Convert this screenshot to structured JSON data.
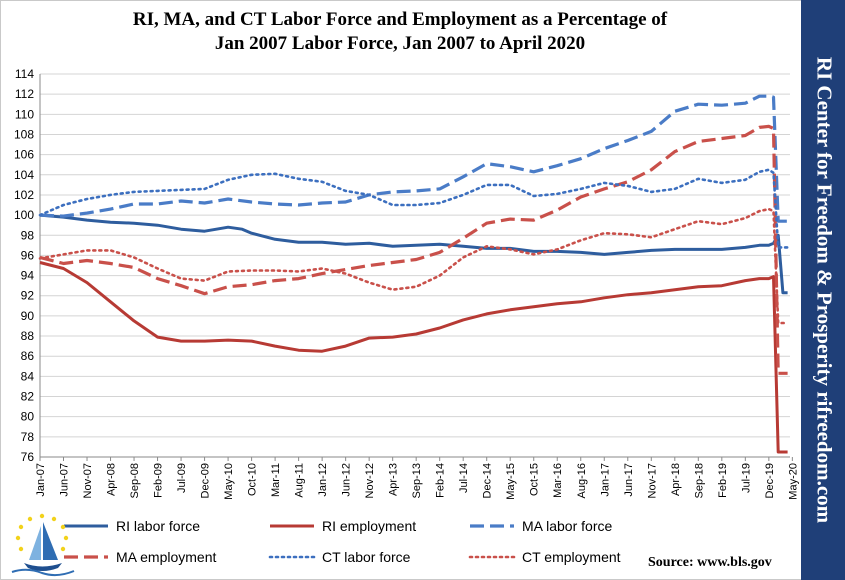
{
  "chart_data": {
    "type": "line",
    "title_line1": "RI, MA, and CT Labor Force and Employment as a Percentage of",
    "title_line2": "Jan 2007 Labor Force, Jan 2007 to April 2020",
    "ylim": [
      76,
      114
    ],
    "yticks": [
      76,
      78,
      80,
      82,
      84,
      86,
      88,
      90,
      92,
      94,
      96,
      98,
      100,
      102,
      104,
      106,
      108,
      110,
      112,
      114
    ],
    "xlim": [
      0,
      159
    ],
    "xticks": [
      {
        "label": "Jan-07",
        "i": 0
      },
      {
        "label": "Jun-07",
        "i": 5
      },
      {
        "label": "Nov-07",
        "i": 10
      },
      {
        "label": "Apr-08",
        "i": 15
      },
      {
        "label": "Sep-08",
        "i": 20
      },
      {
        "label": "Feb-09",
        "i": 25
      },
      {
        "label": "Jul-09",
        "i": 30
      },
      {
        "label": "Dec-09",
        "i": 35
      },
      {
        "label": "May-10",
        "i": 40
      },
      {
        "label": "Oct-10",
        "i": 45
      },
      {
        "label": "Mar-11",
        "i": 50
      },
      {
        "label": "Aug-11",
        "i": 55
      },
      {
        "label": "Jan-12",
        "i": 60
      },
      {
        "label": "Jun-12",
        "i": 65
      },
      {
        "label": "Nov-12",
        "i": 70
      },
      {
        "label": "Apr-13",
        "i": 75
      },
      {
        "label": "Sep-13",
        "i": 80
      },
      {
        "label": "Feb-14",
        "i": 85
      },
      {
        "label": "Jul-14",
        "i": 90
      },
      {
        "label": "Dec-14",
        "i": 95
      },
      {
        "label": "May-15",
        "i": 100
      },
      {
        "label": "Oct-15",
        "i": 105
      },
      {
        "label": "Mar-16",
        "i": 110
      },
      {
        "label": "Aug-16",
        "i": 115
      },
      {
        "label": "Jan-17",
        "i": 120
      },
      {
        "label": "Jun-17",
        "i": 125
      },
      {
        "label": "Nov-17",
        "i": 130
      },
      {
        "label": "Apr-18",
        "i": 135
      },
      {
        "label": "Sep-18",
        "i": 140
      },
      {
        "label": "Feb-19",
        "i": 145
      },
      {
        "label": "Jul-19",
        "i": 150
      },
      {
        "label": "Dec-19",
        "i": 155
      },
      {
        "label": "May-20",
        "i": 160
      }
    ],
    "series": [
      {
        "name": "RI labor force",
        "color": "#2e5d9e",
        "style": "solid",
        "points": [
          [
            0,
            100
          ],
          [
            5,
            99.8
          ],
          [
            10,
            99.5
          ],
          [
            15,
            99.3
          ],
          [
            20,
            99.2
          ],
          [
            25,
            99.0
          ],
          [
            30,
            98.6
          ],
          [
            35,
            98.4
          ],
          [
            40,
            98.8
          ],
          [
            43,
            98.6
          ],
          [
            45,
            98.2
          ],
          [
            50,
            97.6
          ],
          [
            55,
            97.3
          ],
          [
            60,
            97.3
          ],
          [
            65,
            97.1
          ],
          [
            70,
            97.2
          ],
          [
            75,
            96.9
          ],
          [
            80,
            97.0
          ],
          [
            85,
            97.1
          ],
          [
            90,
            96.9
          ],
          [
            95,
            96.7
          ],
          [
            100,
            96.7
          ],
          [
            105,
            96.4
          ],
          [
            110,
            96.4
          ],
          [
            115,
            96.3
          ],
          [
            120,
            96.1
          ],
          [
            125,
            96.3
          ],
          [
            130,
            96.5
          ],
          [
            135,
            96.6
          ],
          [
            140,
            96.6
          ],
          [
            145,
            96.6
          ],
          [
            150,
            96.8
          ],
          [
            153,
            97.0
          ],
          [
            155,
            97.0
          ],
          [
            156,
            97.2
          ],
          [
            157,
            98.0
          ],
          [
            158,
            92.3
          ],
          [
            159,
            92.3
          ]
        ]
      },
      {
        "name": "RI employment",
        "color": "#b73a34",
        "style": "solid",
        "points": [
          [
            0,
            95.3
          ],
          [
            5,
            94.7
          ],
          [
            10,
            93.3
          ],
          [
            15,
            91.4
          ],
          [
            20,
            89.5
          ],
          [
            25,
            87.9
          ],
          [
            30,
            87.5
          ],
          [
            35,
            87.5
          ],
          [
            40,
            87.6
          ],
          [
            45,
            87.5
          ],
          [
            50,
            87.0
          ],
          [
            55,
            86.6
          ],
          [
            60,
            86.5
          ],
          [
            65,
            87.0
          ],
          [
            70,
            87.8
          ],
          [
            75,
            87.9
          ],
          [
            80,
            88.2
          ],
          [
            85,
            88.8
          ],
          [
            90,
            89.6
          ],
          [
            95,
            90.2
          ],
          [
            100,
            90.6
          ],
          [
            105,
            90.9
          ],
          [
            110,
            91.2
          ],
          [
            115,
            91.4
          ],
          [
            120,
            91.8
          ],
          [
            125,
            92.1
          ],
          [
            130,
            92.3
          ],
          [
            135,
            92.6
          ],
          [
            140,
            92.9
          ],
          [
            145,
            93.0
          ],
          [
            150,
            93.5
          ],
          [
            153,
            93.7
          ],
          [
            155,
            93.7
          ],
          [
            156,
            93.9
          ],
          [
            157,
            76.5
          ],
          [
            159,
            76.5
          ]
        ]
      },
      {
        "name": "MA labor force",
        "color": "#4a7cc7",
        "style": "dashed",
        "points": [
          [
            0,
            100
          ],
          [
            5,
            99.9
          ],
          [
            10,
            100.2
          ],
          [
            15,
            100.6
          ],
          [
            20,
            101.1
          ],
          [
            25,
            101.1
          ],
          [
            30,
            101.4
          ],
          [
            35,
            101.2
          ],
          [
            40,
            101.6
          ],
          [
            45,
            101.3
          ],
          [
            50,
            101.1
          ],
          [
            55,
            101.0
          ],
          [
            60,
            101.2
          ],
          [
            65,
            101.3
          ],
          [
            70,
            102.0
          ],
          [
            75,
            102.3
          ],
          [
            80,
            102.4
          ],
          [
            85,
            102.6
          ],
          [
            90,
            103.8
          ],
          [
            95,
            105.1
          ],
          [
            100,
            104.8
          ],
          [
            105,
            104.3
          ],
          [
            110,
            104.9
          ],
          [
            115,
            105.6
          ],
          [
            120,
            106.6
          ],
          [
            125,
            107.4
          ],
          [
            130,
            108.3
          ],
          [
            135,
            110.3
          ],
          [
            140,
            111.0
          ],
          [
            145,
            110.9
          ],
          [
            150,
            111.1
          ],
          [
            153,
            111.8
          ],
          [
            155,
            111.8
          ],
          [
            156,
            111.7
          ],
          [
            157,
            99.4
          ],
          [
            159,
            99.4
          ]
        ]
      },
      {
        "name": "MA employment",
        "color": "#c9504a",
        "style": "dashed",
        "points": [
          [
            0,
            95.8
          ],
          [
            5,
            95.2
          ],
          [
            10,
            95.5
          ],
          [
            15,
            95.2
          ],
          [
            20,
            94.8
          ],
          [
            25,
            93.7
          ],
          [
            30,
            93.0
          ],
          [
            35,
            92.2
          ],
          [
            40,
            92.9
          ],
          [
            45,
            93.1
          ],
          [
            50,
            93.5
          ],
          [
            55,
            93.7
          ],
          [
            60,
            94.2
          ],
          [
            65,
            94.6
          ],
          [
            70,
            95.0
          ],
          [
            75,
            95.3
          ],
          [
            80,
            95.6
          ],
          [
            85,
            96.3
          ],
          [
            90,
            97.7
          ],
          [
            95,
            99.2
          ],
          [
            100,
            99.6
          ],
          [
            105,
            99.5
          ],
          [
            110,
            100.5
          ],
          [
            115,
            101.8
          ],
          [
            120,
            102.6
          ],
          [
            125,
            103.3
          ],
          [
            130,
            104.5
          ],
          [
            135,
            106.3
          ],
          [
            140,
            107.3
          ],
          [
            145,
            107.6
          ],
          [
            150,
            107.9
          ],
          [
            153,
            108.7
          ],
          [
            155,
            108.8
          ],
          [
            156,
            108.6
          ],
          [
            157,
            84.3
          ],
          [
            159,
            84.3
          ]
        ]
      },
      {
        "name": "CT labor force",
        "color": "#3c6fbf",
        "style": "dotted",
        "points": [
          [
            0,
            100
          ],
          [
            5,
            101.0
          ],
          [
            10,
            101.6
          ],
          [
            15,
            102.0
          ],
          [
            20,
            102.3
          ],
          [
            25,
            102.4
          ],
          [
            30,
            102.5
          ],
          [
            35,
            102.6
          ],
          [
            40,
            103.5
          ],
          [
            45,
            104.0
          ],
          [
            50,
            104.1
          ],
          [
            55,
            103.6
          ],
          [
            60,
            103.3
          ],
          [
            65,
            102.4
          ],
          [
            70,
            102.0
          ],
          [
            75,
            101.0
          ],
          [
            80,
            101.0
          ],
          [
            85,
            101.2
          ],
          [
            90,
            102.0
          ],
          [
            95,
            103.0
          ],
          [
            100,
            103.0
          ],
          [
            105,
            101.9
          ],
          [
            110,
            102.1
          ],
          [
            115,
            102.6
          ],
          [
            120,
            103.2
          ],
          [
            125,
            102.9
          ],
          [
            130,
            102.3
          ],
          [
            135,
            102.6
          ],
          [
            140,
            103.6
          ],
          [
            145,
            103.2
          ],
          [
            150,
            103.5
          ],
          [
            153,
            104.3
          ],
          [
            155,
            104.5
          ],
          [
            156,
            104.2
          ],
          [
            157,
            96.8
          ],
          [
            159,
            96.8
          ]
        ]
      },
      {
        "name": "CT employment",
        "color": "#c9504a",
        "style": "dotted",
        "points": [
          [
            0,
            95.7
          ],
          [
            5,
            96.1
          ],
          [
            10,
            96.5
          ],
          [
            15,
            96.5
          ],
          [
            20,
            95.8
          ],
          [
            25,
            94.7
          ],
          [
            30,
            93.7
          ],
          [
            35,
            93.5
          ],
          [
            40,
            94.4
          ],
          [
            45,
            94.5
          ],
          [
            50,
            94.5
          ],
          [
            55,
            94.4
          ],
          [
            60,
            94.7
          ],
          [
            65,
            94.2
          ],
          [
            70,
            93.3
          ],
          [
            75,
            92.6
          ],
          [
            80,
            92.9
          ],
          [
            85,
            94.0
          ],
          [
            90,
            95.8
          ],
          [
            95,
            96.9
          ],
          [
            100,
            96.6
          ],
          [
            105,
            96.1
          ],
          [
            110,
            96.6
          ],
          [
            115,
            97.5
          ],
          [
            120,
            98.2
          ],
          [
            125,
            98.1
          ],
          [
            130,
            97.8
          ],
          [
            135,
            98.6
          ],
          [
            140,
            99.4
          ],
          [
            145,
            99.1
          ],
          [
            150,
            99.7
          ],
          [
            153,
            100.4
          ],
          [
            155,
            100.6
          ],
          [
            156,
            100.4
          ],
          [
            157,
            89.3
          ],
          [
            159,
            89.3
          ]
        ]
      }
    ],
    "legend_placement": "bottom"
  },
  "side_banner": "RI Center for Freedom & Prosperity     rifreedom.com",
  "source_text": "Source: www.bls.gov"
}
